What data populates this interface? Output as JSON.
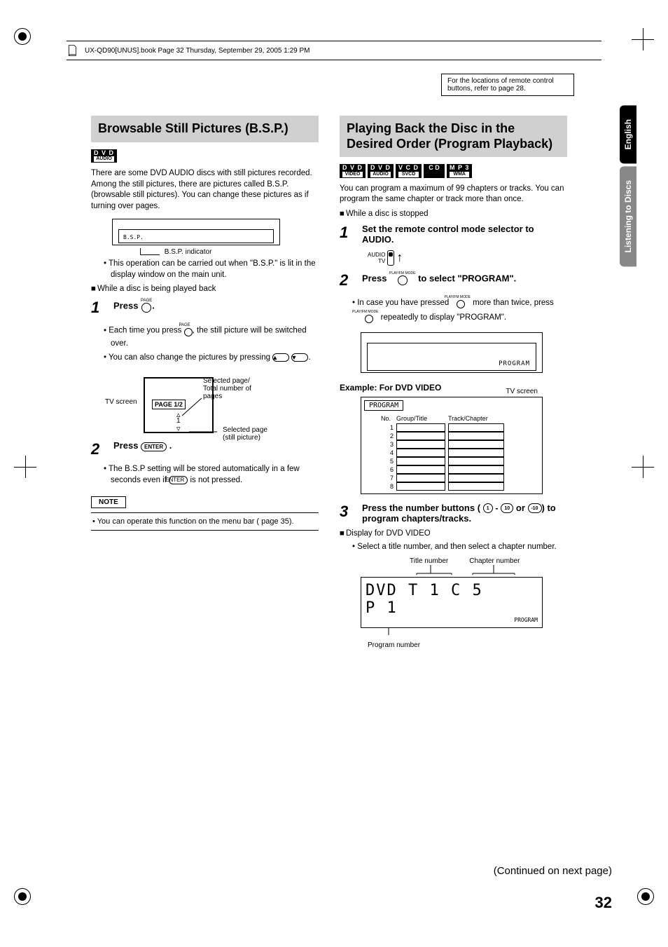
{
  "book_header": "UX-QD90[UNUS].book  Page 32  Thursday, September 29, 2005  1:29 PM",
  "ref_box": "For the locations of remote control buttons, refer to page 28.",
  "sidebar": {
    "tab1": "English",
    "tab2": "Listening to Discs"
  },
  "left": {
    "heading": "Browsable Still Pictures (B.S.P.)",
    "badge": {
      "top": "D V D",
      "bot": "AUDIO"
    },
    "intro": "There are some DVD AUDIO discs with still pictures recorded. Among the still pictures, there are pictures called B.S.P. (browsable still pictures). You can change these pictures as if turning over pages.",
    "lcd_label": "B.S.P.",
    "lcd_callout": "B.S.P. indicator",
    "bullet1": "This operation can be carried out when \"B.S.P.\" is lit in the display window on the main unit.",
    "cond1": "While a disc is being played back",
    "step1_label": "Press",
    "step1_btn_top": "PAGE",
    "step1_b1a": "Each time you press",
    "step1_b1b": ", the still picture will be switched over.",
    "step1_b2": "You can also change the pictures by pressing",
    "tv_label": "TV screen",
    "tv_ann1": "Selected page/\nTotal number of\npages",
    "tv_page_chip": "PAGE 1/2",
    "tv_center": "1",
    "tv_ann2": "Selected page\n(still picture)",
    "step2_label": "Press",
    "step2_btn": "ENTER",
    "step2_b1": "The B.S.P setting will be stored automatically in a few seconds even if",
    "step2_b1b": "is not pressed.",
    "note_title": "NOTE",
    "note_text": "You can operate this function on the menu bar (          page 35)."
  },
  "right": {
    "heading": "Playing Back the Disc in the Desired Order (Program Playback)",
    "badges": [
      {
        "top": "D V D",
        "bot": "VIDEO"
      },
      {
        "top": "D V D",
        "bot": "AUDIO"
      },
      {
        "top": "V C D",
        "bot": "SVCD"
      },
      {
        "top": "C D",
        "bot": ""
      },
      {
        "top": "M P 3",
        "bot": "WMA"
      }
    ],
    "intro": "You can program a maximum of 99 chapters or tracks. You can program the same chapter or track more than once.",
    "cond1": "While a disc is stopped",
    "step1": "Set the remote control mode selector to AUDIO.",
    "switch_top": "AUDIO",
    "switch_bot": "TV",
    "step2a": "Press",
    "step2_btn": "PLAY/FM MODE",
    "step2b": "to select \"PROGRAM\".",
    "step2_b1a": "In case you have pressed",
    "step2_b1b": "more than twice, press",
    "step2_b1c": "repeatedly to display \"PROGRAM\".",
    "lcd_prog": "PROGRAM",
    "example_label": "Example: For DVD VIDEO",
    "prog_header": "PROGRAM",
    "prog_tv": "TV screen",
    "prog_cols": {
      "no": "No.",
      "gt": "Group/Title",
      "tc": "Track/Chapter"
    },
    "prog_rows": [
      1,
      2,
      3,
      4,
      5,
      6,
      7,
      8
    ],
    "step3a": "Press the number buttons (",
    "step3b": "-",
    "step3c": "or",
    "step3d": ") to program chapters/tracks.",
    "btn_1": "1",
    "btn_10": "10",
    "btn_neg10": "-10",
    "cond3": "Display for DVD VIDEO",
    "step3_b1": "Select a title number, and then select a chapter number.",
    "lcd_labels": {
      "title": "Title number",
      "chapter": "Chapter number",
      "program": "Program number"
    },
    "lcd_line1": "DVD  T  1   C   5",
    "lcd_line2": "P   1",
    "lcd_small": "PROGRAM"
  },
  "continued": "(Continued on next page)",
  "page_num": "32",
  "colors": {
    "heading_bg": "#d0d0d0",
    "text": "#000000",
    "bg": "#ffffff"
  }
}
